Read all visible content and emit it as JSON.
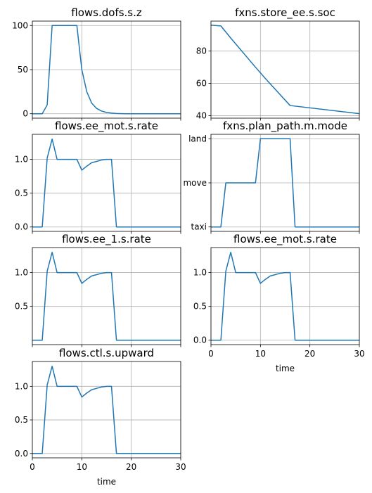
{
  "chart_data": [
    {
      "type": "line",
      "title": "flows.dofs.s.z",
      "xlim": [
        0,
        30
      ],
      "ylim": [
        -5,
        105
      ],
      "yticks": [
        0,
        50,
        100
      ],
      "ytick_labels": [
        "0",
        "50",
        "100"
      ],
      "xticks": [
        0,
        10,
        20,
        30
      ],
      "xtick_labels": [],
      "xlabel": "",
      "grid": true,
      "series": [
        {
          "color": "#1f77b4",
          "x": [
            0,
            1,
            2,
            3,
            4,
            5,
            6,
            7,
            8,
            9,
            10,
            11,
            12,
            13,
            14,
            15,
            16,
            17,
            18,
            19,
            20,
            21,
            22,
            23,
            24,
            25,
            26,
            27,
            28,
            29,
            30
          ],
          "y": [
            0,
            0,
            0,
            10,
            100,
            100,
            100,
            100,
            100,
            100,
            50,
            25,
            12,
            6,
            3,
            1.5,
            0.8,
            0.3,
            0.1,
            0,
            0,
            0,
            0,
            0,
            0,
            0,
            0,
            0,
            0,
            0,
            0
          ]
        }
      ]
    },
    {
      "type": "line",
      "title": "fxns.store_ee.s.soc",
      "xlim": [
        0,
        30
      ],
      "ylim": [
        38.5,
        98.5
      ],
      "yticks": [
        40,
        60,
        80
      ],
      "ytick_labels": [
        "40",
        "60",
        "80"
      ],
      "xticks": [
        0,
        10,
        20,
        30
      ],
      "xtick_labels": [],
      "xlabel": "",
      "grid": true,
      "series": [
        {
          "color": "#1f77b4",
          "x": [
            0,
            2,
            4,
            9,
            11,
            16,
            30
          ],
          "y": [
            96,
            95.5,
            88,
            70,
            63,
            46.3,
            41.3
          ]
        }
      ]
    },
    {
      "type": "line",
      "title": "flows.ee_mot.s.rate",
      "xlim": [
        0,
        30
      ],
      "ylim": [
        -0.065,
        1.37
      ],
      "yticks": [
        0,
        0.5,
        1.0
      ],
      "ytick_labels": [
        "0.0",
        "0.5",
        "1.0"
      ],
      "xticks": [
        0,
        10,
        20,
        30
      ],
      "xtick_labels": [],
      "xlabel": "",
      "grid": true,
      "series": [
        {
          "color": "#1f77b4",
          "x": [
            0,
            1,
            2,
            3,
            4,
            5,
            6,
            7,
            8,
            9,
            10,
            11,
            12,
            13,
            14,
            15,
            16,
            17,
            18,
            19,
            20,
            21,
            22,
            23,
            24,
            25,
            26,
            27,
            28,
            29,
            30
          ],
          "y": [
            0,
            0,
            0,
            1.02,
            1.3,
            1.0,
            1.0,
            1.0,
            1.0,
            1.0,
            0.84,
            0.9,
            0.95,
            0.97,
            0.99,
            1.0,
            1.0,
            0,
            0,
            0,
            0,
            0,
            0,
            0,
            0,
            0,
            0,
            0,
            0,
            0,
            0
          ]
        }
      ]
    },
    {
      "type": "line",
      "title": "fxns.plan_path.m.mode",
      "xlim": [
        0,
        30
      ],
      "ylim": [
        -0.1,
        2.1
      ],
      "yticks": [
        0,
        1,
        2
      ],
      "ytick_labels": [
        "taxi",
        "move",
        "land"
      ],
      "xticks": [
        0,
        10,
        20,
        30
      ],
      "xtick_labels": [],
      "xlabel": "",
      "grid": true,
      "series": [
        {
          "color": "#1f77b4",
          "x": [
            0,
            1,
            2,
            3,
            4,
            5,
            6,
            7,
            8,
            9,
            10,
            11,
            12,
            13,
            14,
            15,
            16,
            17,
            18,
            19,
            20,
            21,
            22,
            23,
            24,
            25,
            26,
            27,
            28,
            29,
            30
          ],
          "y": [
            0,
            0,
            0,
            1,
            1,
            1,
            1,
            1,
            1,
            1,
            2,
            2,
            2,
            2,
            2,
            2,
            2,
            0,
            0,
            0,
            0,
            0,
            0,
            0,
            0,
            0,
            0,
            0,
            0,
            0,
            0
          ]
        }
      ]
    },
    {
      "type": "line",
      "title": "flows.ee_1.s.rate",
      "xlim": [
        0,
        30
      ],
      "ylim": [
        -0.065,
        1.37
      ],
      "yticks": [
        0.5,
        1.0
      ],
      "ytick_labels": [
        "0.5",
        "1.0"
      ],
      "xticks": [
        0,
        10,
        20,
        30
      ],
      "xtick_labels": [],
      "xlabel": "",
      "grid": true,
      "series": [
        {
          "color": "#1f77b4",
          "x": [
            0,
            1,
            2,
            3,
            4,
            5,
            6,
            7,
            8,
            9,
            10,
            11,
            12,
            13,
            14,
            15,
            16,
            17,
            18,
            19,
            20,
            21,
            22,
            23,
            24,
            25,
            26,
            27,
            28,
            29,
            30
          ],
          "y": [
            0,
            0,
            0,
            1.02,
            1.3,
            1.0,
            1.0,
            1.0,
            1.0,
            1.0,
            0.84,
            0.9,
            0.95,
            0.97,
            0.99,
            1.0,
            1.0,
            0,
            0,
            0,
            0,
            0,
            0,
            0,
            0,
            0,
            0,
            0,
            0,
            0,
            0
          ]
        }
      ]
    },
    {
      "type": "line",
      "title": "flows.ee_mot.s.rate",
      "xlim": [
        0,
        30
      ],
      "ylim": [
        -0.065,
        1.37
      ],
      "yticks": [
        0,
        0.5,
        1.0
      ],
      "ytick_labels": [
        "0.0",
        "0.5",
        "1.0"
      ],
      "xticks": [
        0,
        10,
        20,
        30
      ],
      "xtick_labels": [
        "0",
        "10",
        "20",
        "30"
      ],
      "xlabel": "time",
      "grid": true,
      "series": [
        {
          "color": "#1f77b4",
          "x": [
            0,
            1,
            2,
            3,
            4,
            5,
            6,
            7,
            8,
            9,
            10,
            11,
            12,
            13,
            14,
            15,
            16,
            17,
            18,
            19,
            20,
            21,
            22,
            23,
            24,
            25,
            26,
            27,
            28,
            29,
            30
          ],
          "y": [
            0,
            0,
            0,
            1.02,
            1.3,
            1.0,
            1.0,
            1.0,
            1.0,
            1.0,
            0.84,
            0.9,
            0.95,
            0.97,
            0.99,
            1.0,
            1.0,
            0,
            0,
            0,
            0,
            0,
            0,
            0,
            0,
            0,
            0,
            0,
            0,
            0,
            0
          ]
        }
      ]
    },
    {
      "type": "line",
      "title": "flows.ctl.s.upward",
      "xlim": [
        0,
        30
      ],
      "ylim": [
        -0.065,
        1.37
      ],
      "yticks": [
        0,
        0.5,
        1.0
      ],
      "ytick_labels": [
        "0.0",
        "0.5",
        "1.0"
      ],
      "xticks": [
        0,
        10,
        20,
        30
      ],
      "xtick_labels": [
        "0",
        "10",
        "20",
        "30"
      ],
      "xlabel": "time",
      "grid": true,
      "series": [
        {
          "color": "#1f77b4",
          "x": [
            0,
            1,
            2,
            3,
            4,
            5,
            6,
            7,
            8,
            9,
            10,
            11,
            12,
            13,
            14,
            15,
            16,
            17,
            18,
            19,
            20,
            21,
            22,
            23,
            24,
            25,
            26,
            27,
            28,
            29,
            30
          ],
          "y": [
            0,
            0,
            0,
            1.02,
            1.3,
            1.0,
            1.0,
            1.0,
            1.0,
            1.0,
            0.84,
            0.9,
            0.95,
            0.97,
            0.99,
            1.0,
            1.0,
            0,
            0,
            0,
            0,
            0,
            0,
            0,
            0,
            0,
            0,
            0,
            0,
            0,
            0
          ]
        }
      ]
    }
  ]
}
